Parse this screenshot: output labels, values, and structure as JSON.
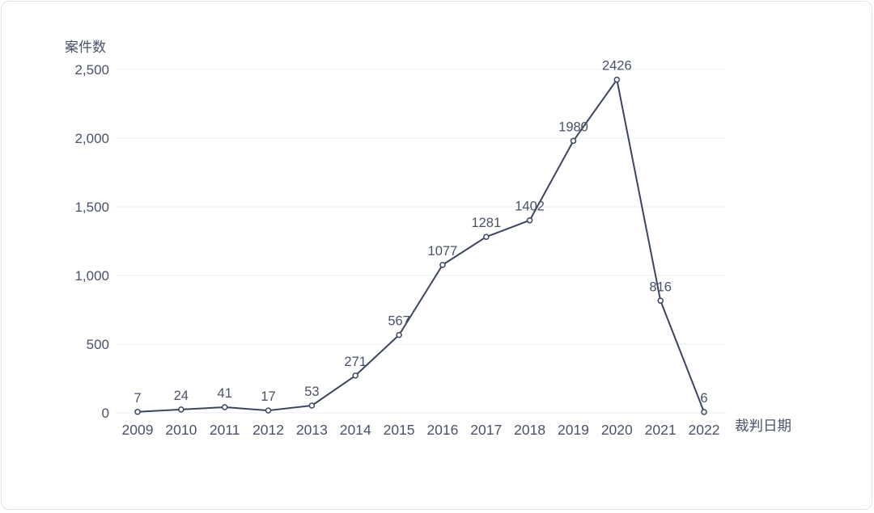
{
  "chart_data": {
    "type": "line",
    "title": "",
    "ylabel": "案件数",
    "xlabel": "裁判日期",
    "categories": [
      "2009",
      "2010",
      "2011",
      "2012",
      "2013",
      "2014",
      "2015",
      "2016",
      "2017",
      "2018",
      "2019",
      "2020",
      "2021",
      "2022"
    ],
    "series": [
      {
        "name": "案件数",
        "values": [
          7,
          24,
          41,
          17,
          53,
          271,
          567,
          1077,
          1281,
          1402,
          1980,
          2426,
          816,
          6
        ]
      }
    ],
    "ylim": [
      0,
      2500
    ],
    "yticks": [
      {
        "value": 0,
        "label": "0"
      },
      {
        "value": 500,
        "label": "500"
      },
      {
        "value": 1000,
        "label": "1,000"
      },
      {
        "value": 1500,
        "label": "1,500"
      },
      {
        "value": 2000,
        "label": "2,000"
      },
      {
        "value": 2500,
        "label": "2,500"
      }
    ],
    "grid": true,
    "legend_position": "none",
    "data_labels": true,
    "marker": "hollow-circle",
    "colors": {
      "line": "#3b465e",
      "marker_fill": "#ffffff",
      "text": "#4a5268",
      "grid": "#e9edf4",
      "background": "#ffffff",
      "card_border": "#dfe3ee"
    }
  }
}
